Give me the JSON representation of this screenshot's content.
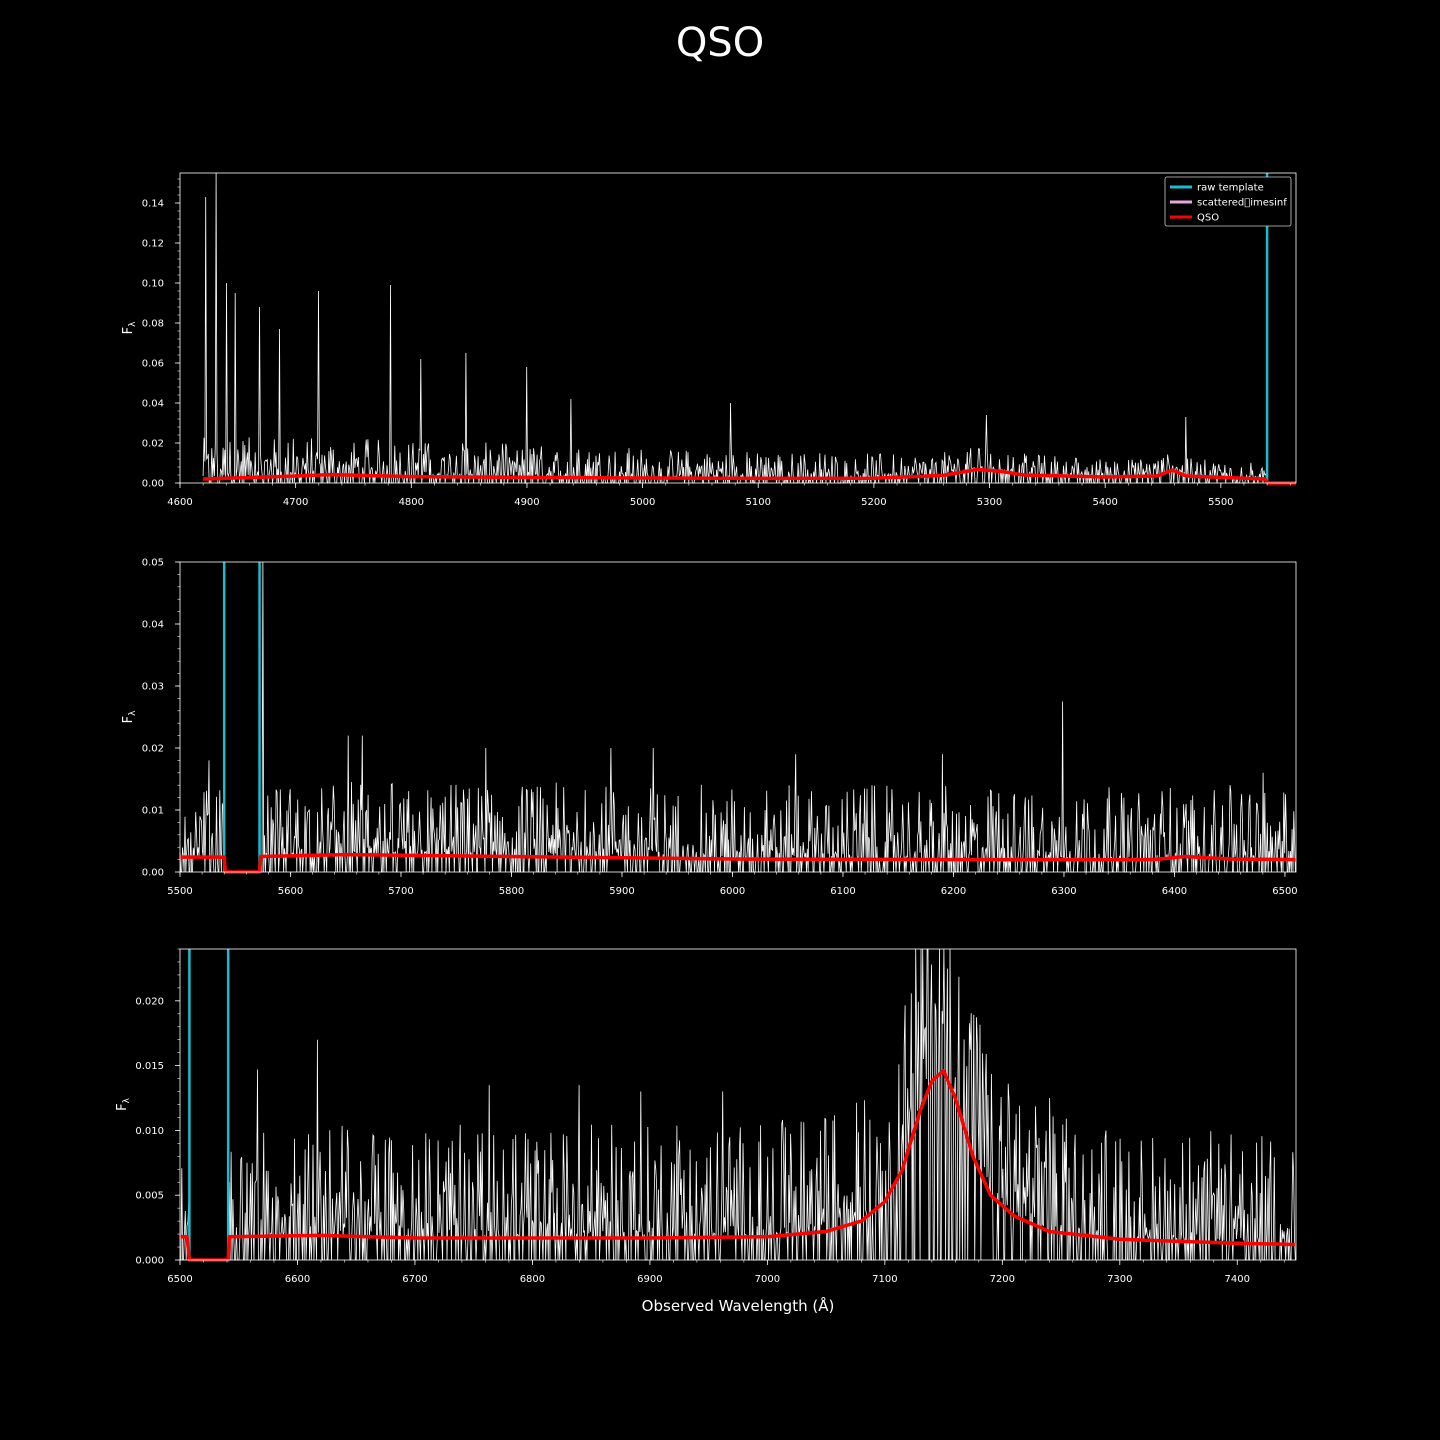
{
  "title": "QSO",
  "xlabel": "Observed Wavelength (Å)",
  "colors": {
    "background": "#000000",
    "spectrum": "#ffffff",
    "raw_template": "#17becf",
    "scattered": "#e7a6dd",
    "qso": "#ff0000"
  },
  "legend": [
    {
      "label": "raw template",
      "color": "#17becf"
    },
    {
      "label": "scattered\u0000imesinf",
      "color": "#e7a6dd"
    },
    {
      "label": "QSO",
      "color": "#ff0000"
    }
  ],
  "chart_data": [
    {
      "type": "line",
      "ylabel": "F",
      "ylabel_sub": "λ",
      "xlim": [
        4600,
        5565
      ],
      "ylim": [
        0,
        0.155
      ],
      "xticks": [
        4600,
        4700,
        4800,
        4900,
        5000,
        5100,
        5200,
        5300,
        5400,
        5500
      ],
      "yticks": [
        0.0,
        0.02,
        0.04,
        0.06,
        0.08,
        0.1,
        0.12,
        0.14
      ],
      "ytick_labels": [
        "0.00",
        "0.02",
        "0.04",
        "0.06",
        "0.08",
        "0.10",
        "0.12",
        "0.14"
      ],
      "spectrum_range": [
        4620,
        5540
      ],
      "spectrum_peaks": [
        [
          4622,
          0.143
        ],
        [
          4631,
          0.155
        ],
        [
          4640,
          0.1
        ],
        [
          4648,
          0.095
        ],
        [
          4669,
          0.088
        ],
        [
          4686,
          0.077
        ],
        [
          4720,
          0.096
        ],
        [
          4782,
          0.099
        ],
        [
          4808,
          0.062
        ],
        [
          4847,
          0.065
        ],
        [
          4900,
          0.058
        ],
        [
          4938,
          0.042
        ],
        [
          5076,
          0.04
        ],
        [
          5297,
          0.034
        ],
        [
          5470,
          0.033
        ]
      ],
      "noise_level": 0.016,
      "raw_template": [
        [
          5540,
          0.155
        ]
      ],
      "qso": [
        [
          4620,
          0.002
        ],
        [
          4700,
          0.0035
        ],
        [
          4730,
          0.0042
        ],
        [
          4800,
          0.0032
        ],
        [
          4900,
          0.0028
        ],
        [
          5000,
          0.0025
        ],
        [
          5100,
          0.0023
        ],
        [
          5200,
          0.0024
        ],
        [
          5260,
          0.0038
        ],
        [
          5290,
          0.0068
        ],
        [
          5310,
          0.0058
        ],
        [
          5330,
          0.004
        ],
        [
          5400,
          0.003
        ],
        [
          5445,
          0.0035
        ],
        [
          5458,
          0.0065
        ],
        [
          5470,
          0.0035
        ],
        [
          5500,
          0.0028
        ],
        [
          5538,
          0.002
        ],
        [
          5541,
          0.0
        ],
        [
          5565,
          0.0
        ]
      ],
      "legend_position": "upper right"
    },
    {
      "type": "line",
      "ylabel": "F",
      "ylabel_sub": "λ",
      "xlim": [
        5500,
        6510
      ],
      "ylim": [
        0,
        0.05
      ],
      "xticks": [
        5500,
        5600,
        5700,
        5800,
        5900,
        6000,
        6100,
        6200,
        6300,
        6400,
        6500
      ],
      "yticks": [
        0.0,
        0.01,
        0.02,
        0.03,
        0.04,
        0.05
      ],
      "ytick_labels": [
        "0.00",
        "0.01",
        "0.02",
        "0.03",
        "0.04",
        "0.05"
      ],
      "spectrum_range": [
        5500,
        6510
      ],
      "spectrum_gaps": [
        [
          5540,
          5573
        ]
      ],
      "spectrum_peaks": [
        [
          5526,
          0.018
        ],
        [
          5575,
          0.05
        ],
        [
          5652,
          0.022
        ],
        [
          5665,
          0.022
        ],
        [
          5777,
          0.02
        ],
        [
          5890,
          0.02
        ],
        [
          5928,
          0.02
        ],
        [
          6057,
          0.019
        ],
        [
          6190,
          0.019
        ],
        [
          6299,
          0.0275
        ],
        [
          6480,
          0.016
        ]
      ],
      "noise_level": 0.012,
      "raw_template": [
        [
          5540,
          0.05
        ],
        [
          5572,
          0.05
        ]
      ],
      "qso": [
        [
          5500,
          0.0024
        ],
        [
          5540,
          0.0024
        ],
        [
          5541,
          0.0
        ],
        [
          5572,
          0.0
        ],
        [
          5573,
          0.0025
        ],
        [
          5650,
          0.0028
        ],
        [
          5750,
          0.0026
        ],
        [
          5850,
          0.0024
        ],
        [
          6000,
          0.0021
        ],
        [
          6200,
          0.002
        ],
        [
          6380,
          0.002
        ],
        [
          6410,
          0.0025
        ],
        [
          6450,
          0.0021
        ],
        [
          6510,
          0.002
        ]
      ]
    },
    {
      "type": "line",
      "ylabel": "F",
      "ylabel_sub": "λ",
      "xlim": [
        6500,
        7450
      ],
      "ylim": [
        0,
        0.024
      ],
      "xticks": [
        6500,
        6600,
        6700,
        6800,
        6900,
        7000,
        7100,
        7200,
        7300,
        7400
      ],
      "yticks": [
        0.0,
        0.005,
        0.01,
        0.015,
        0.02
      ],
      "ytick_labels": [
        "0.000",
        "0.005",
        "0.010",
        "0.015",
        "0.020"
      ],
      "spectrum_range": [
        6500,
        7450
      ],
      "spectrum_gaps": [
        [
          6508,
          6541
        ]
      ],
      "spectrum_peaks": [
        [
          6566,
          0.0147
        ],
        [
          6617,
          0.017
        ],
        [
          6763,
          0.0135
        ],
        [
          6840,
          0.0135
        ],
        [
          6892,
          0.013
        ],
        [
          6962,
          0.013
        ],
        [
          7140,
          0.0228
        ],
        [
          7150,
          0.024
        ],
        [
          7240,
          0.0125
        ]
      ],
      "noise_level": 0.0075,
      "raw_template": [
        [
          6508,
          0.024
        ],
        [
          6541,
          0.024
        ]
      ],
      "qso": [
        [
          6500,
          0.0018
        ],
        [
          6506,
          0.0018
        ],
        [
          6508,
          0.0
        ],
        [
          6541,
          0.0
        ],
        [
          6542,
          0.0018
        ],
        [
          6620,
          0.0019
        ],
        [
          6700,
          0.0017
        ],
        [
          6900,
          0.0017
        ],
        [
          7000,
          0.0018
        ],
        [
          7050,
          0.0022
        ],
        [
          7080,
          0.003
        ],
        [
          7100,
          0.0045
        ],
        [
          7115,
          0.007
        ],
        [
          7130,
          0.0115
        ],
        [
          7140,
          0.0138
        ],
        [
          7150,
          0.0146
        ],
        [
          7160,
          0.0125
        ],
        [
          7175,
          0.008
        ],
        [
          7190,
          0.005
        ],
        [
          7210,
          0.0034
        ],
        [
          7240,
          0.0022
        ],
        [
          7300,
          0.0016
        ],
        [
          7400,
          0.0013
        ],
        [
          7450,
          0.0012
        ]
      ]
    }
  ]
}
